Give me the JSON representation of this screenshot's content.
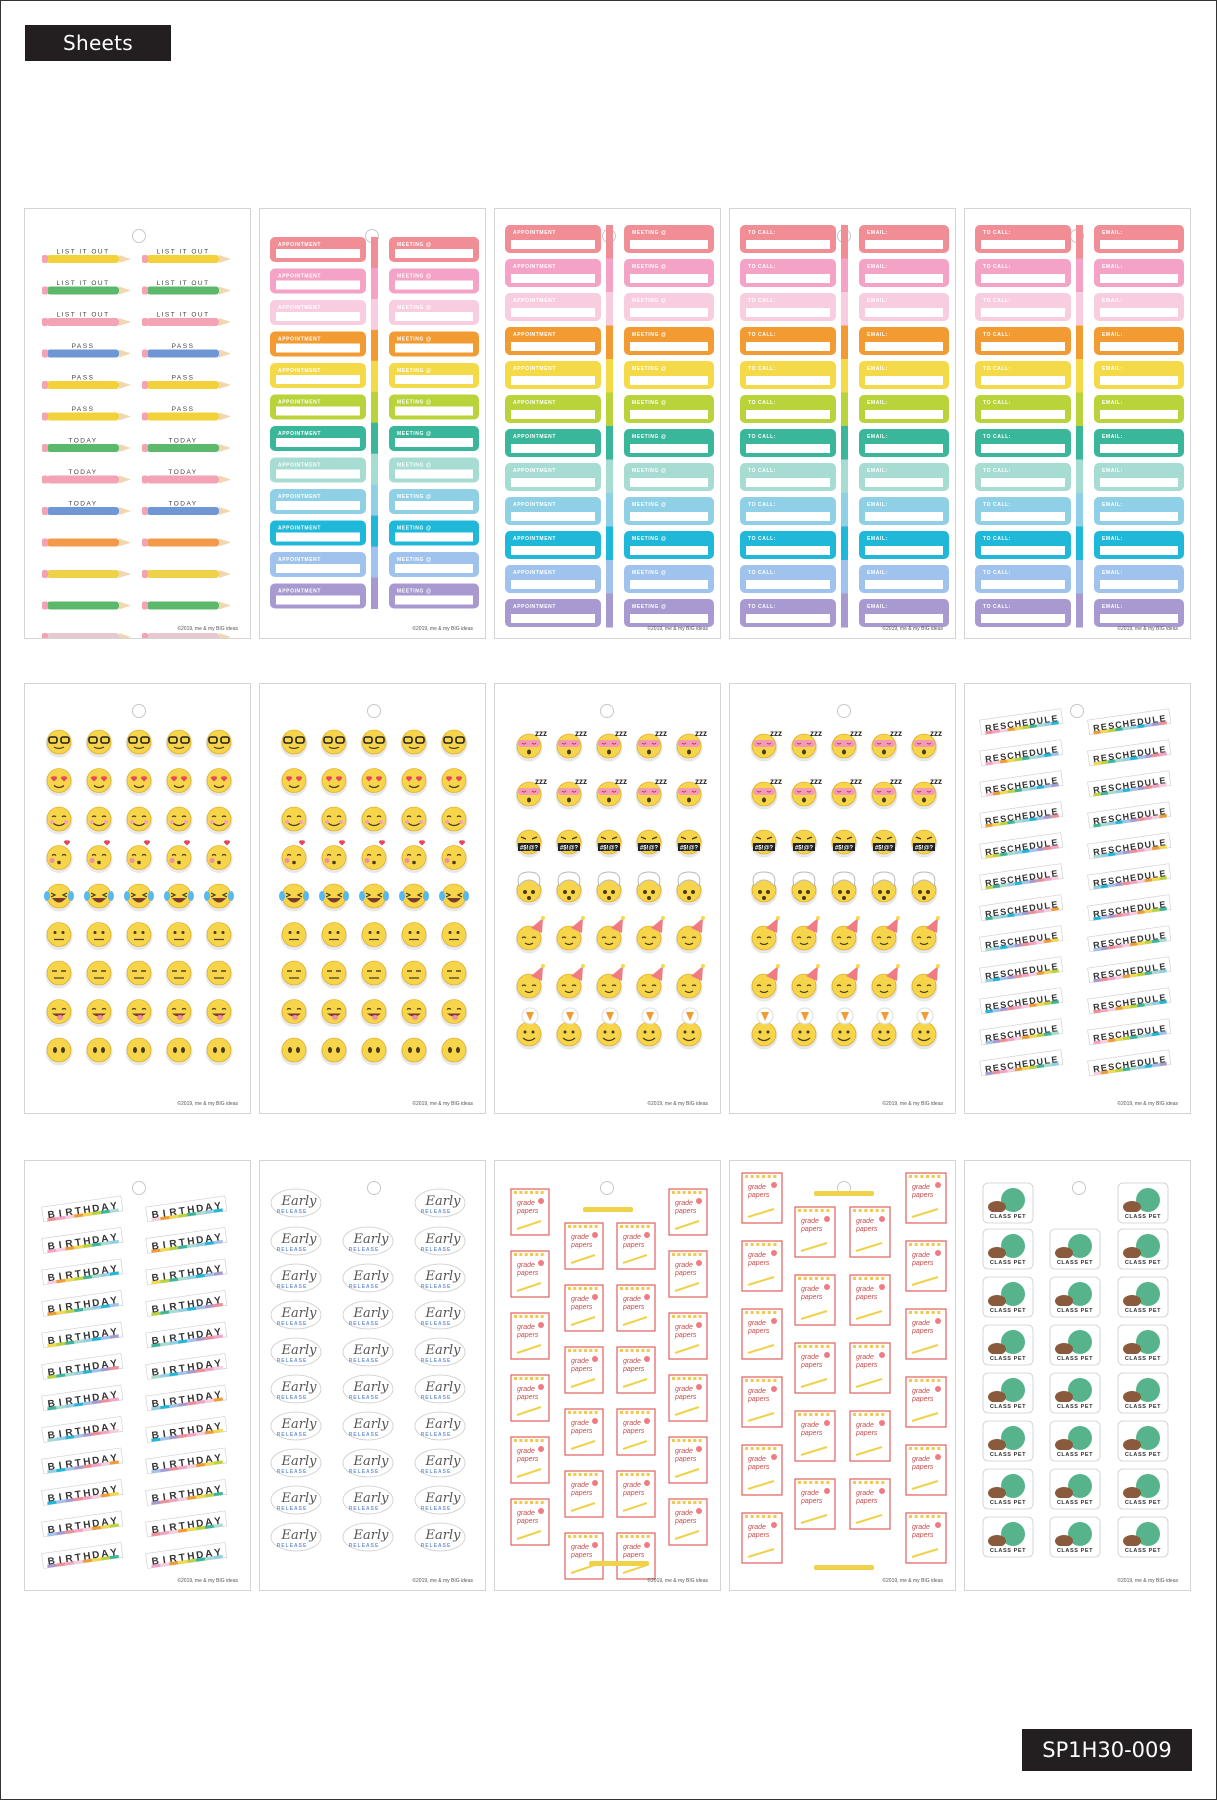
{
  "header": {
    "title": "Sheets"
  },
  "footer": {
    "sku": "SP1H30-009"
  },
  "sheets": {
    "copyright": "©2019, me & my BIG ideas",
    "labels": {
      "list_it_out": "LIST IT OUT",
      "pass": "PASS",
      "today": "TODAY",
      "appointment": "APPOINTMENT",
      "meeting": "MEETING @",
      "to_call": "TO CALL:",
      "email": "EMAIL:",
      "reschedule": "RESCHEDULE",
      "birthday": "BIRTHDAY",
      "early": "Early",
      "release": "RELEASE",
      "grade_papers": "grade papers",
      "class_pet": "CLASS PET",
      "sign": "#$!@?"
    },
    "colors": {
      "rainbow": [
        "#f08d95",
        "#f4a3c6",
        "#f8cde0",
        "#f39b33",
        "#f4d949",
        "#b9d43a",
        "#3ab79a",
        "#a6dcd1",
        "#8fd0e6",
        "#1fb8d8",
        "#9fc3ec",
        "#a89ad0"
      ],
      "pencils": [
        "#f2d13a",
        "#5cb86a",
        "#f4a3b5",
        "#6f97d6",
        "#f29a4a",
        "#efd24a",
        "#e8c8d0"
      ],
      "emoji_yellow": "#f7d54a",
      "emoji_outline": "#d6a316",
      "pet_green": "#56b38b",
      "paper_red": "#e36b6b"
    },
    "icons": [
      "smiley-glasses-icon",
      "heart-eyes-icon",
      "smiling-icon",
      "kissing-icon",
      "laughing-tears-icon",
      "neutral-face-icon",
      "expressionless-icon",
      "tongue-face-icon",
      "sleeping-icon",
      "grawlix-icon",
      "mind-blown-icon",
      "party-hat-icon",
      "pizza-icon"
    ]
  }
}
